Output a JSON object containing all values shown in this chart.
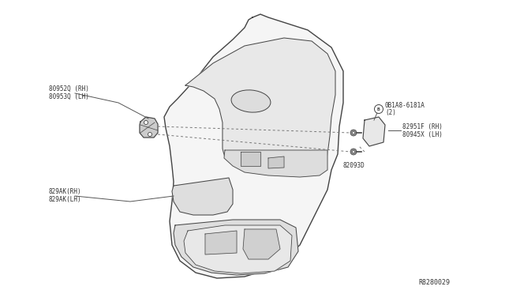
{
  "background_color": "#ffffff",
  "diagram_color": "#444444",
  "part_number_bottom_right": "R8280029",
  "labels": {
    "top_left_line1": "80952Q (RH)",
    "top_left_line2": "80953Q (LH)",
    "bottom_left_line1": "829AK(RH)",
    "bottom_left_line2": "829AK(LH)",
    "top_right_circle": "B",
    "top_right_line1": "0B1A8-6181A",
    "top_right_line2": "(2)",
    "mid_right_line1": "82951F (RH)",
    "mid_right_line2": "80945X (LH)",
    "bolt_label": "82093D"
  },
  "line_color": "#555555",
  "dashed_color": "#777777",
  "text_color": "#333333",
  "font_size": 5.5,
  "door_fill": "#f5f5f5",
  "door_stroke": "#444444",
  "inner_fill": "#e8e8e8",
  "part_fill": "#eeeeee"
}
